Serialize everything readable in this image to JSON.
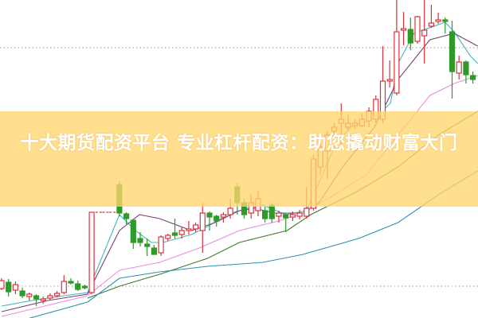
{
  "title": "十大期货配资平台 专业杠杆配资：助您撬动财富大门",
  "chart_data": {
    "type": "candlestick",
    "axes_shown": false,
    "grid": "dotted horizontal",
    "colors": {
      "up": "#d9343c",
      "down": "#2f9a2a",
      "ma5": "#3fb6b8",
      "ma10": "#7a3f78",
      "ma20": "#e88ee0",
      "ma30": "#3d7a2a",
      "ma60": "#2f8fb0",
      "banner": "#ffd66e"
    },
    "candles": [
      [
        37,
        47,
        50,
        35
      ],
      [
        45,
        33,
        49,
        27
      ],
      [
        35,
        42,
        46,
        30
      ],
      [
        34,
        28,
        38,
        25
      ],
      [
        27,
        30,
        32,
        22
      ],
      [
        28,
        24,
        30,
        15
      ],
      [
        22,
        24,
        27,
        18
      ],
      [
        25,
        28,
        31,
        22
      ],
      [
        28,
        31,
        34,
        26
      ],
      [
        32,
        46,
        54,
        30
      ],
      [
        46,
        44,
        50,
        42
      ],
      [
        43,
        36,
        47,
        34
      ],
      [
        40,
        38,
        42,
        36
      ],
      [
        32,
        133,
        133,
        30
      ],
      [
        133,
        133,
        133,
        133
      ],
      [
        133,
        133,
        133,
        133
      ],
      [
        133,
        133,
        133,
        133
      ],
      [
        168,
        132,
        172,
        128
      ],
      [
        131,
        125,
        133,
        118
      ],
      [
        123,
        95,
        125,
        87
      ],
      [
        100,
        95,
        108,
        90
      ],
      [
        93,
        90,
        100,
        78
      ],
      [
        88,
        80,
        92,
        80
      ],
      [
        82,
        102,
        104,
        78
      ],
      [
        100,
        104,
        106,
        97
      ],
      [
        107,
        104,
        125,
        100
      ],
      [
        105,
        110,
        114,
        100
      ],
      [
        110,
        112,
        122,
        105
      ],
      [
        112,
        117,
        120,
        108
      ],
      [
        110,
        132,
        145,
        82
      ],
      [
        132,
        127,
        134,
        110
      ],
      [
        128,
        122,
        130,
        115
      ],
      [
        127,
        130,
        133,
        120
      ],
      [
        130,
        138,
        150,
        125
      ],
      [
        165,
        145,
        170,
        130
      ],
      [
        145,
        130,
        150,
        125
      ],
      [
        132,
        145,
        155,
        125
      ],
      [
        135,
        150,
        160,
        128
      ],
      [
        135,
        125,
        140,
        120
      ],
      [
        142,
        125,
        145,
        120
      ],
      [
        128,
        132,
        135,
        120
      ],
      [
        130,
        126,
        132,
        108
      ],
      [
        127,
        130,
        134,
        122
      ],
      [
        128,
        132,
        136,
        124
      ],
      [
        128,
        138,
        165,
        125
      ],
      [
        138,
        200,
        205,
        135
      ],
      [
        190,
        215,
        225,
        180
      ],
      [
        210,
        230,
        235,
        175
      ],
      [
        235,
        240,
        245,
        225
      ],
      [
        245,
        250,
        270,
        215
      ],
      [
        240,
        245,
        255,
        235
      ],
      [
        242,
        245,
        250,
        238
      ],
      [
        242,
        250,
        258,
        240
      ],
      [
        248,
        260,
        265,
        240
      ],
      [
        250,
        275,
        280,
        245
      ],
      [
        250,
        298,
        342,
        245
      ],
      [
        298,
        300,
        324,
        290
      ],
      [
        283,
        360,
        400,
        280
      ],
      [
        362,
        364,
        385,
        343
      ],
      [
        363,
        346,
        378,
        337
      ],
      [
        348,
        379,
        380,
        345
      ],
      [
        355,
        362,
        400,
        320
      ],
      [
        367,
        371,
        394,
        365
      ],
      [
        373,
        375,
        384,
        370
      ],
      [
        375,
        373,
        378,
        358
      ],
      [
        360,
        310,
        374,
        276
      ],
      [
        308,
        322,
        330,
        300
      ],
      [
        322,
        306,
        324,
        295
      ],
      [
        305,
        300,
        310,
        295
      ]
    ],
    "candle_fields": [
      "open",
      "close",
      "high",
      "low"
    ],
    "moving_averages": [
      {
        "key": "ma5",
        "points": [
          [
            0,
            15
          ],
          [
            4.4,
            22
          ],
          [
            9,
            28
          ],
          [
            12.4,
            32
          ],
          [
            17,
            130
          ],
          [
            19.3,
            110
          ],
          [
            21.6,
            95
          ],
          [
            23.3,
            95
          ],
          [
            27.4,
            105
          ],
          [
            29.7,
            115
          ],
          [
            33,
            132
          ],
          [
            37.7,
            142
          ],
          [
            41,
            130
          ],
          [
            44,
            135
          ],
          [
            45.8,
            170
          ],
          [
            48,
            215
          ],
          [
            50.3,
            240
          ],
          [
            53.8,
            252
          ],
          [
            56.1,
            270
          ],
          [
            57.2,
            320
          ],
          [
            59.5,
            358
          ],
          [
            64,
            372
          ],
          [
            65.3,
            360
          ],
          [
            67.6,
            330
          ],
          [
            68.7,
            320
          ]
        ]
      },
      {
        "key": "ma10",
        "points": [
          [
            0,
            8
          ],
          [
            6.7,
            22
          ],
          [
            12.4,
            30
          ],
          [
            17,
            110
          ],
          [
            19.9,
            130
          ],
          [
            22.8,
            125
          ],
          [
            27.4,
            110
          ],
          [
            30.8,
            120
          ],
          [
            34.3,
            135
          ],
          [
            36.5,
            138
          ],
          [
            39.4,
            132
          ],
          [
            43.5,
            132
          ],
          [
            45.8,
            145
          ],
          [
            49.2,
            190
          ],
          [
            53.8,
            240
          ],
          [
            57.2,
            300
          ],
          [
            61.8,
            350
          ],
          [
            65.3,
            358
          ],
          [
            68.7,
            342
          ]
        ]
      },
      {
        "key": "ma20",
        "points": [
          [
            0,
            2
          ],
          [
            12.4,
            28
          ],
          [
            17,
            60
          ],
          [
            22.8,
            70
          ],
          [
            28.5,
            88
          ],
          [
            34.3,
            110
          ],
          [
            40,
            122
          ],
          [
            43.5,
            132
          ],
          [
            48,
            155
          ],
          [
            52.6,
            180
          ],
          [
            57.2,
            230
          ],
          [
            61.8,
            280
          ],
          [
            65.3,
            295
          ],
          [
            68.7,
            305
          ]
        ]
      },
      {
        "key": "ma30",
        "points": [
          [
            12.4,
            25
          ],
          [
            17,
            40
          ],
          [
            22.8,
            55
          ],
          [
            29.7,
            75
          ],
          [
            34.3,
            95
          ],
          [
            41.2,
            110
          ],
          [
            44.6,
            130
          ],
          [
            51.5,
            160
          ],
          [
            57.2,
            190
          ],
          [
            63,
            230
          ],
          [
            68.7,
            260
          ]
        ]
      },
      {
        "key": "ma60",
        "points": [
          [
            0,
            -10
          ],
          [
            12.4,
            20
          ],
          [
            17,
            50
          ],
          [
            22.8,
            58
          ],
          [
            29.7,
            65
          ],
          [
            37.7,
            70
          ],
          [
            43.5,
            80
          ],
          [
            51.5,
            100
          ],
          [
            57.2,
            120
          ],
          [
            63,
            155
          ],
          [
            68.7,
            185
          ]
        ]
      }
    ],
    "grid_levels": [
      340,
      40
    ]
  }
}
